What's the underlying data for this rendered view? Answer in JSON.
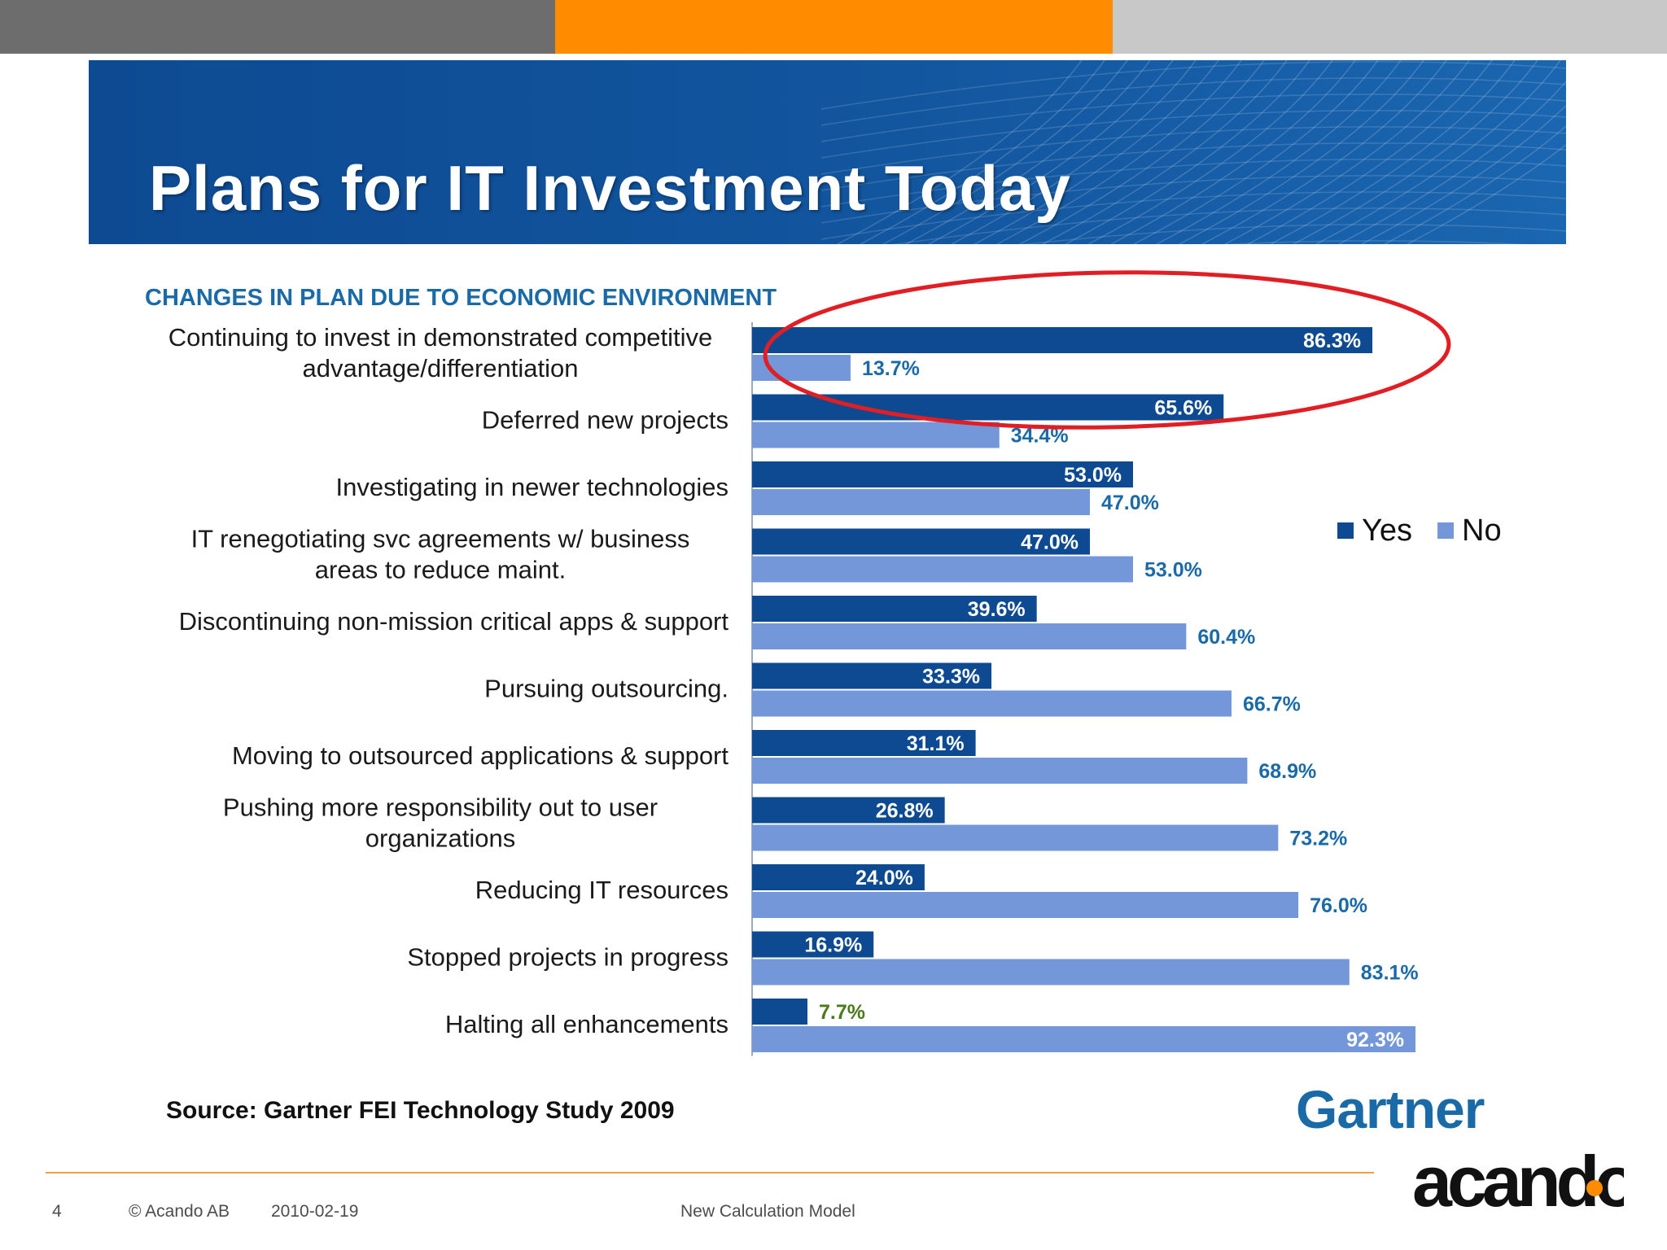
{
  "slide": {
    "title": "Plans for IT Investment Today",
    "colors": {
      "gray": "#6d6d6d",
      "orange": "#ff8c00",
      "light": "#c8c8c8",
      "banner": "#12569f"
    }
  },
  "chart_data": {
    "type": "bar",
    "orientation": "horizontal",
    "title": "CHANGES IN PLAN DUE TO ECONOMIC ENVIRONMENT",
    "categories": [
      [
        "Continuing to invest in demonstrated competitive",
        "advantage/differentiation"
      ],
      [
        "Deferred new projects"
      ],
      [
        "Investigating in newer technologies"
      ],
      [
        "IT renegotiating svc agreements w/ business",
        "areas to reduce maint."
      ],
      [
        "Discontinuing  non-mission critical apps & support"
      ],
      [
        "Pursuing outsourcing."
      ],
      [
        "Moving to outsourced applications & support"
      ],
      [
        "Pushing more responsibility out to user",
        "organizations"
      ],
      [
        "Reducing IT resources"
      ],
      [
        "Stopped projects in progress"
      ],
      [
        "Halting all enhancements"
      ]
    ],
    "series": [
      {
        "name": "Yes",
        "color": "#0d4a92",
        "values": [
          86.3,
          65.6,
          53.0,
          47.0,
          39.6,
          33.3,
          31.1,
          26.8,
          24.0,
          16.9,
          7.7
        ],
        "labels": [
          "86.3%",
          "65.6%",
          "53.0%",
          "47.0%",
          "39.6%",
          "33.3%",
          "31.1%",
          "26.8%",
          "24.0%",
          "16.9%",
          "7.7%"
        ]
      },
      {
        "name": "No",
        "color": "#7397d8",
        "values": [
          13.7,
          34.4,
          47.0,
          53.0,
          60.4,
          66.7,
          68.9,
          73.2,
          76.0,
          83.1,
          92.3
        ],
        "labels": [
          "13.7%",
          "34.4%",
          "47.0%",
          "53.0%",
          "60.4%",
          "66.7%",
          "68.9%",
          "73.2%",
          "76.0%",
          "83.1%",
          "92.3%"
        ]
      }
    ],
    "xlim": [
      0,
      100
    ],
    "legend": "right",
    "annotation": "red ellipse highlighting first category"
  },
  "source": "Source: Gartner FEI Technology Study 2009",
  "gartner_logo": "Gartner",
  "footer": {
    "page": "4",
    "copyright": "© Acando AB",
    "date": "2010-02-19",
    "doc_title": "New Calculation Model",
    "logo": "acando"
  }
}
